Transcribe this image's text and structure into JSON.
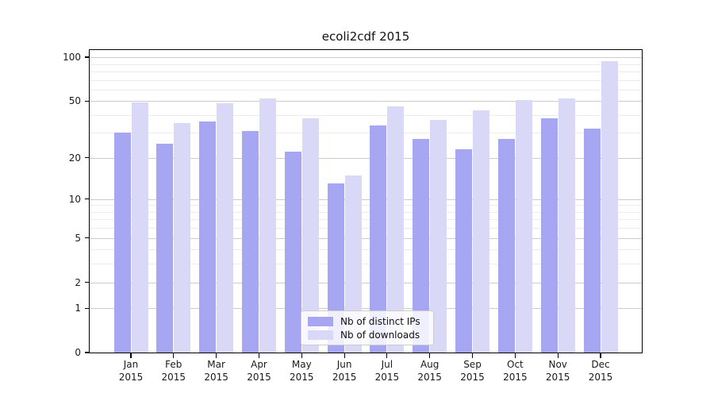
{
  "chart_data": {
    "type": "bar",
    "title": "ecoli2cdf 2015",
    "categories": [
      "Jan",
      "Feb",
      "Mar",
      "Apr",
      "May",
      "Jun",
      "Jul",
      "Aug",
      "Sep",
      "Oct",
      "Nov",
      "Dec"
    ],
    "x_tick_year": "2015",
    "series": [
      {
        "name": "Nb of distinct IPs",
        "color": "#a6a6f2",
        "values": [
          30,
          25,
          36,
          31,
          22,
          13,
          34,
          27,
          23,
          27,
          38,
          32
        ]
      },
      {
        "name": "Nb of downloads",
        "color": "#d9d9f7",
        "values": [
          49,
          35,
          48,
          52,
          38,
          15,
          46,
          37,
          43,
          51,
          52,
          94
        ]
      }
    ],
    "xlabel": "",
    "ylabel": "",
    "y_scale": "log1p",
    "y_ticks": [
      0,
      1,
      2,
      5,
      10,
      20,
      50,
      100
    ],
    "y_minor_gridlines": [
      3,
      4,
      6,
      7,
      8,
      9,
      30,
      40,
      60,
      70,
      80,
      90
    ],
    "ylim": [
      0,
      112
    ],
    "grid": true,
    "legend_position": "lower center",
    "colors": {
      "grid_major": "#cccccc",
      "grid_minor": "#ececec",
      "axis": "#000000",
      "text": "#1a1a1a"
    }
  }
}
